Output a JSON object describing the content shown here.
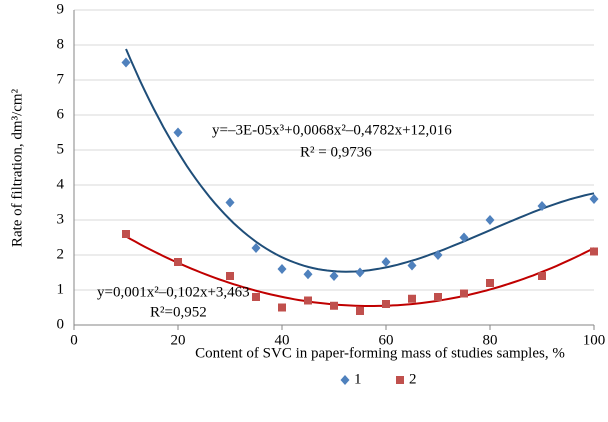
{
  "chart_data": {
    "type": "scatter",
    "xlabel": "Content of SVC in paper-forming mass of studies samples, %",
    "ylabel": "Rate of filtration,  dm³/cm²",
    "xlim": [
      0,
      100
    ],
    "xticks": [
      0,
      20,
      40,
      60,
      80,
      100
    ],
    "ylim": [
      0,
      9
    ],
    "yticks": [
      0,
      1,
      2,
      3,
      4,
      5,
      6,
      7,
      8,
      9
    ],
    "grid": true,
    "legend": "bottom",
    "series": [
      {
        "name": "1",
        "color": "#4f81bd",
        "marker": "diamond",
        "trendline_color": "#1f4e79",
        "trendline_order": 3,
        "x": [
          10,
          20,
          30,
          35,
          40,
          45,
          50,
          55,
          60,
          65,
          70,
          75,
          80,
          90,
          100
        ],
        "values": [
          7.5,
          5.5,
          3.5,
          2.2,
          1.6,
          1.45,
          1.4,
          1.5,
          1.8,
          1.7,
          2.0,
          2.5,
          3.0,
          3.4,
          3.6
        ],
        "equation": "y=–3E-05x³+0,0068x²–0,4782x+12,016",
        "r2": "R² = 0,9736"
      },
      {
        "name": "2",
        "color": "#c0504d",
        "marker": "square",
        "trendline_color": "#c00000",
        "trendline_order": 2,
        "x": [
          10,
          20,
          30,
          35,
          40,
          45,
          50,
          55,
          60,
          65,
          70,
          75,
          80,
          90,
          100
        ],
        "values": [
          2.6,
          1.8,
          1.4,
          0.8,
          0.5,
          0.7,
          0.55,
          0.4,
          0.6,
          0.75,
          0.8,
          0.9,
          1.2,
          1.4,
          2.1
        ],
        "equation": "y=0,001x²–0,102x+3,463",
        "r2": "R²=0,952"
      }
    ]
  }
}
